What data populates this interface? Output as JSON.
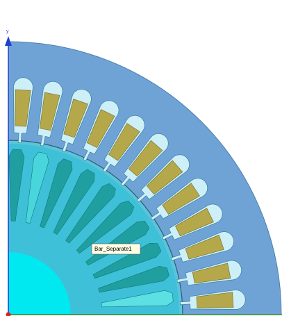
{
  "axis": {
    "y_label": "y"
  },
  "tooltip": "Bar_Separate1"
}
